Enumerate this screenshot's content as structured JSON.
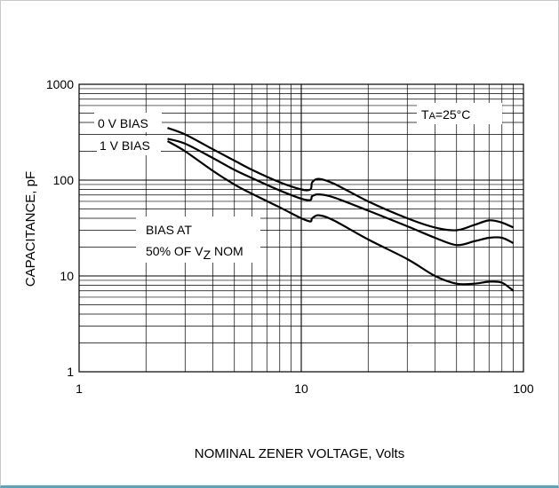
{
  "chart_data": {
    "type": "line",
    "xscale": "log",
    "yscale": "log",
    "xlim": [
      1,
      100
    ],
    "ylim": [
      1,
      1000
    ],
    "grid": true,
    "xlabel": "NOMINAL ZENER VOLTAGE, Volts",
    "ylabel": "CAPACITANCE, pF",
    "x_tick_labels": [
      "1",
      "10",
      "100"
    ],
    "y_tick_labels": [
      "1",
      "10",
      "100",
      "1000"
    ],
    "annotations": {
      "temp_main": "T",
      "temp_sub": "A",
      "temp_rest": "=25°C",
      "bias0": "0 V BIAS",
      "bias1": "1 V BIAS",
      "bias50_line1": "BIAS AT",
      "bias50_line2_a": "50% OF V",
      "bias50_line2_sub": "Z",
      "bias50_line2_b": " NOM"
    },
    "series": [
      {
        "name": "0 V BIAS",
        "points": [
          [
            2.5,
            350
          ],
          [
            3,
            300
          ],
          [
            4,
            210
          ],
          [
            5,
            160
          ],
          [
            6,
            128
          ],
          [
            8,
            95
          ],
          [
            10,
            80
          ],
          [
            11,
            80
          ],
          [
            11.2,
            95
          ],
          [
            12,
            103
          ],
          [
            14,
            92
          ],
          [
            20,
            60
          ],
          [
            30,
            40
          ],
          [
            40,
            32
          ],
          [
            50,
            30
          ],
          [
            60,
            34
          ],
          [
            70,
            38
          ],
          [
            80,
            36
          ],
          [
            90,
            32
          ]
        ]
      },
      {
        "name": "1 V BIAS",
        "points": [
          [
            2.5,
            270
          ],
          [
            3,
            240
          ],
          [
            4,
            170
          ],
          [
            5,
            128
          ],
          [
            6,
            105
          ],
          [
            8,
            78
          ],
          [
            10,
            64
          ],
          [
            11,
            62
          ],
          [
            11.2,
            68
          ],
          [
            12,
            71
          ],
          [
            14,
            66
          ],
          [
            20,
            48
          ],
          [
            30,
            33
          ],
          [
            40,
            25
          ],
          [
            50,
            21
          ],
          [
            60,
            23
          ],
          [
            70,
            25
          ],
          [
            80,
            25
          ],
          [
            90,
            22
          ]
        ]
      },
      {
        "name": "BIAS AT 50% OF VZ NOM",
        "points": [
          [
            2.5,
            255
          ],
          [
            3,
            200
          ],
          [
            4,
            125
          ],
          [
            5,
            90
          ],
          [
            6,
            72
          ],
          [
            8,
            52
          ],
          [
            10,
            40
          ],
          [
            11,
            37
          ],
          [
            11.2,
            40
          ],
          [
            12,
            43
          ],
          [
            14,
            38
          ],
          [
            20,
            24
          ],
          [
            30,
            15
          ],
          [
            40,
            10
          ],
          [
            50,
            8.3
          ],
          [
            60,
            8.3
          ],
          [
            70,
            8.7
          ],
          [
            80,
            8.5
          ],
          [
            90,
            7
          ]
        ]
      }
    ]
  }
}
